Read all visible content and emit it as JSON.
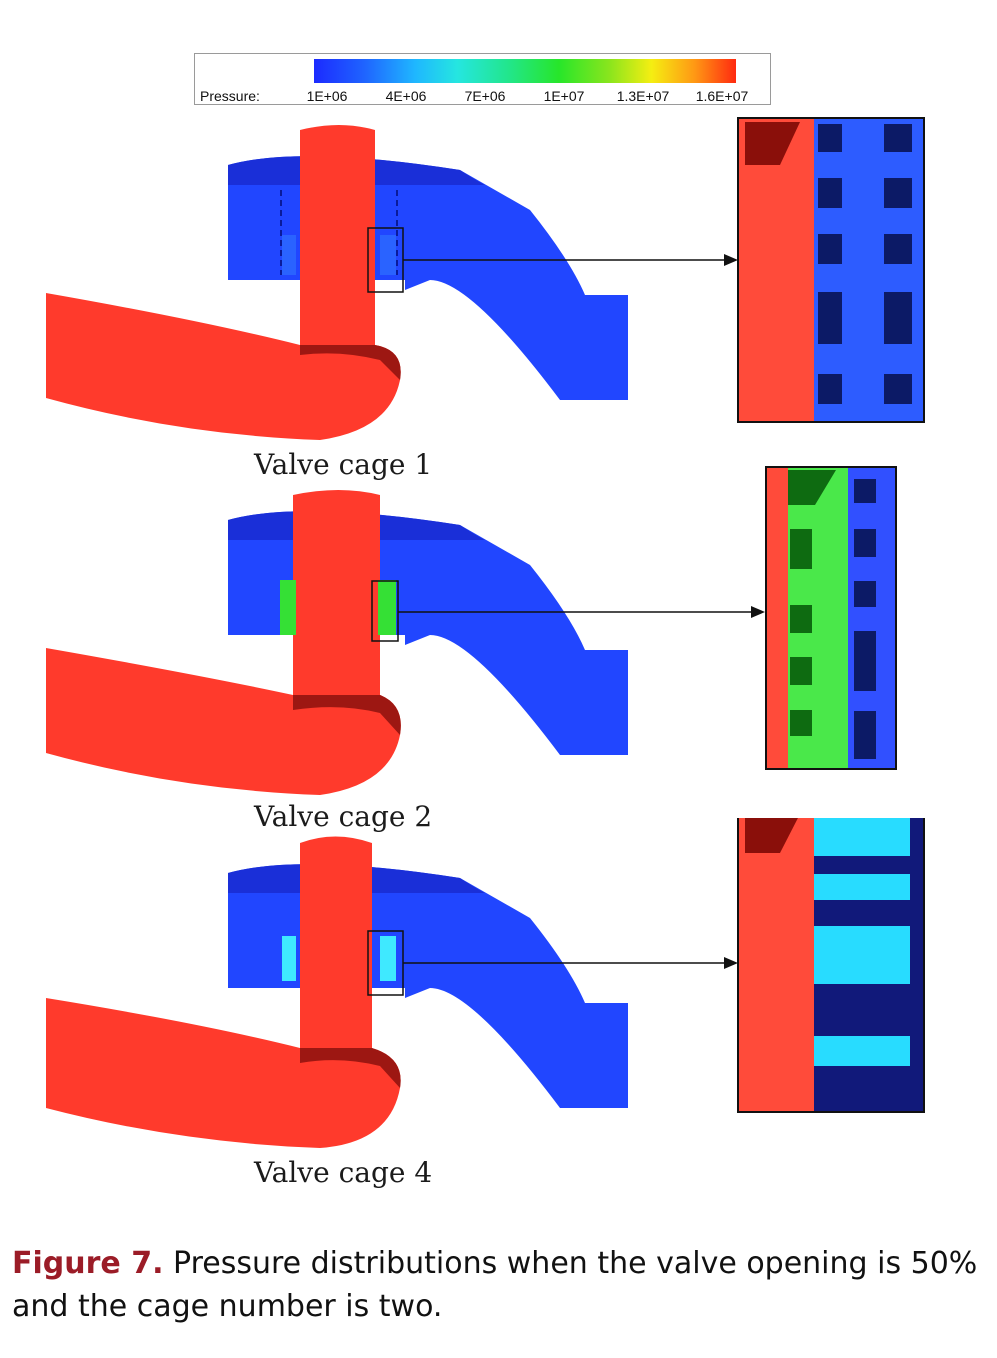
{
  "legend": {
    "label": "Pressure:",
    "ticks": [
      "1E+06",
      "4E+06",
      "7E+06",
      "1E+07",
      "1.3E+07",
      "1.6E+07"
    ]
  },
  "panels": [
    {
      "label": "Valve cage 1",
      "cage_fill": "#2a63ff",
      "zoom_fill": "#2d5cff"
    },
    {
      "label": "Valve cage 2",
      "cage_fill": "#35e035",
      "zoom_fill": "#4ae84a"
    },
    {
      "label": "Valve cage 4",
      "cage_fill": "#3fe9ff",
      "zoom_fill": "#28dcff"
    }
  ],
  "caption": {
    "figure_label": "Figure 7.",
    "text": " Pressure distributions when the valve opening is 50% and the cage number is two."
  },
  "colors": {
    "high_pressure": "#ff3a2c",
    "low_pressure": "#2146ff",
    "shadow_red": "#9d1712",
    "frame": "#111111",
    "accent_caption": "#9b1c27"
  }
}
